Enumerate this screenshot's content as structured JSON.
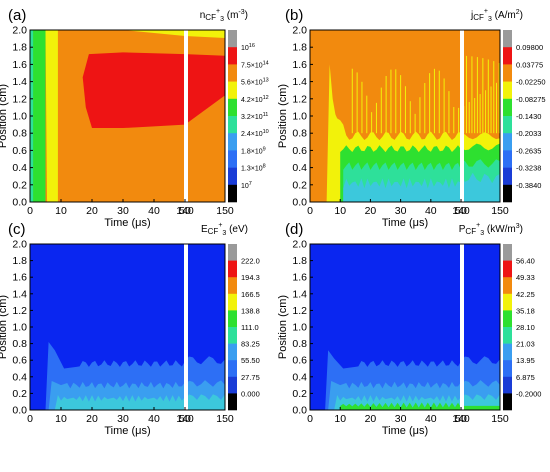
{
  "colors": {
    "black": "#000000",
    "navy": "#1a3cd6",
    "blue": "#0a26f0",
    "blue2": "#2d6ff5",
    "sky": "#3a9ef0",
    "cyan": "#3cc8dc",
    "teal": "#2ee09a",
    "green": "#2ee030",
    "yellow": "#f2f20a",
    "orange": "#f28a0e",
    "red": "#ee1414",
    "grey": "#9a9a9a"
  },
  "chart_data": [
    {
      "type": "heatmap",
      "panel_label": "(a)",
      "title_sub": "CF",
      "title_sup": "+",
      "title_sub2": "3",
      "title_prefix": "n",
      "title_unit": "(m",
      "title_unit_sup": "-3",
      "title_unit_end": ")",
      "xlabel_main": "Time (",
      "xlabel_mu": "μs",
      "xlabel_end": ")",
      "ylabel": "Position (cm)",
      "x_ticks": [
        "0",
        "10",
        "20",
        "30",
        "40",
        "50",
        "140",
        "150"
      ],
      "y_ticks": [
        "0.0",
        "0.2",
        "0.4",
        "0.6",
        "0.8",
        "1.0",
        "1.2",
        "1.4",
        "1.6",
        "1.8",
        "2.0"
      ],
      "xlim": [
        0,
        150
      ],
      "ylim": [
        0.0,
        2.0
      ],
      "colorbar_levels": [
        {
          "label": "10^16",
          "base": "10",
          "exp": "16"
        },
        {
          "label": "7.5×10^14",
          "base": "7.5×10",
          "exp": "14"
        },
        {
          "label": "5.6×10^13",
          "base": "5.6×10",
          "exp": "13"
        },
        {
          "label": "4.2×10^12",
          "base": "4.2×10",
          "exp": "12"
        },
        {
          "label": "3.2×10^11",
          "base": "3.2×10",
          "exp": "11"
        },
        {
          "label": "2.4×10^10",
          "base": "2.4×10",
          "exp": "10"
        },
        {
          "label": "1.8×10^9",
          "base": "1.8×10",
          "exp": "9"
        },
        {
          "label": "1.3×10^8",
          "base": "1.3×10",
          "exp": "8"
        },
        {
          "label": "10^7",
          "base": "10",
          "exp": "7"
        }
      ]
    },
    {
      "type": "heatmap",
      "panel_label": "(b)",
      "title_prefix": "j",
      "title_sub": "CF",
      "title_sup": "+",
      "title_sub2": "3",
      "title_unit": "(A/m",
      "title_unit_sup": "2",
      "title_unit_end": ")",
      "xlabel_main": "Time (",
      "xlabel_mu": "μs",
      "xlabel_end": ")",
      "ylabel": "Position (cm)",
      "x_ticks": [
        "0",
        "10",
        "20",
        "30",
        "40",
        "50",
        "140",
        "150"
      ],
      "y_ticks": [
        "0.0",
        "0.2",
        "0.4",
        "0.6",
        "0.8",
        "1.0",
        "1.2",
        "1.4",
        "1.6",
        "1.8",
        "2.0"
      ],
      "xlim": [
        0,
        150
      ],
      "ylim": [
        0.0,
        2.0
      ],
      "colorbar_levels": [
        {
          "label": "0.09800"
        },
        {
          "label": "0.03775"
        },
        {
          "label": "-0.02250"
        },
        {
          "label": "-0.08275"
        },
        {
          "label": "-0.1430"
        },
        {
          "label": "-0.2033"
        },
        {
          "label": "-0.2635"
        },
        {
          "label": "-0.3238"
        },
        {
          "label": "-0.3840"
        }
      ]
    },
    {
      "type": "heatmap",
      "panel_label": "(c)",
      "title_prefix": "E",
      "title_sub": "CF",
      "title_sup": "+",
      "title_sub2": "3",
      "title_unit": "(eV)",
      "title_unit_sup": "",
      "title_unit_end": "",
      "xlabel_main": "Time (",
      "xlabel_mu": "μs",
      "xlabel_end": ")",
      "ylabel": "Position (cm)",
      "x_ticks": [
        "0",
        "10",
        "20",
        "30",
        "40",
        "50",
        "140",
        "150"
      ],
      "y_ticks": [
        "0.0",
        "0.2",
        "0.4",
        "0.6",
        "0.8",
        "1.0",
        "1.2",
        "1.4",
        "1.6",
        "1.8",
        "2.0"
      ],
      "xlim": [
        0,
        150
      ],
      "ylim": [
        0.0,
        2.0
      ],
      "colorbar_levels": [
        {
          "label": "222.0"
        },
        {
          "label": "194.3"
        },
        {
          "label": "166.5"
        },
        {
          "label": "138.8"
        },
        {
          "label": "111.0"
        },
        {
          "label": "83.25"
        },
        {
          "label": "55.50"
        },
        {
          "label": "27.75"
        },
        {
          "label": "0.000"
        }
      ]
    },
    {
      "type": "heatmap",
      "panel_label": "(d)",
      "title_prefix": "P",
      "title_sub": "CF",
      "title_sup": "+",
      "title_sub2": "3",
      "title_unit": "(kW/m",
      "title_unit_sup": "3",
      "title_unit_end": ")",
      "xlabel_main": "Time (",
      "xlabel_mu": "μs",
      "xlabel_end": ")",
      "ylabel": "Position (cm)",
      "x_ticks": [
        "0",
        "10",
        "20",
        "30",
        "40",
        "50",
        "140",
        "150"
      ],
      "y_ticks": [
        "0.0",
        "0.2",
        "0.4",
        "0.6",
        "0.8",
        "1.0",
        "1.2",
        "1.4",
        "1.6",
        "1.8",
        "2.0"
      ],
      "xlim": [
        0,
        150
      ],
      "ylim": [
        0.0,
        2.0
      ],
      "colorbar_levels": [
        {
          "label": "56.40"
        },
        {
          "label": "49.33"
        },
        {
          "label": "42.25"
        },
        {
          "label": "35.18"
        },
        {
          "label": "28.10"
        },
        {
          "label": "21.03"
        },
        {
          "label": "13.95"
        },
        {
          "label": "6.875"
        },
        {
          "label": "-0.2000"
        }
      ]
    }
  ]
}
